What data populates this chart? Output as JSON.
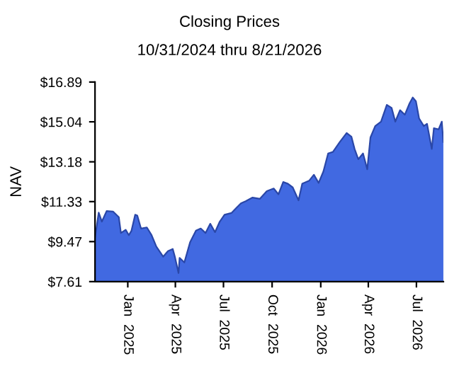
{
  "chart_data": {
    "type": "area",
    "title": "Closing Prices",
    "subtitle": "10/31/2024 thru 8/21/2026",
    "ylabel": "NAV",
    "x": [
      "2024-10-31",
      "2024-11-07",
      "2024-11-13",
      "2024-11-22",
      "2024-12-04",
      "2024-12-15",
      "2024-12-19",
      "2024-12-28",
      "2025-01-03",
      "2025-01-08",
      "2025-01-15",
      "2025-01-19",
      "2025-01-26",
      "2025-02-06",
      "2025-02-15",
      "2025-02-24",
      "2025-03-09",
      "2025-03-18",
      "2025-03-27",
      "2025-03-31",
      "2025-04-07",
      "2025-04-09",
      "2025-04-18",
      "2025-04-29",
      "2025-05-10",
      "2025-05-19",
      "2025-05-28",
      "2025-06-06",
      "2025-06-15",
      "2025-06-24",
      "2025-07-03",
      "2025-07-16",
      "2025-07-25",
      "2025-08-03",
      "2025-08-12",
      "2025-08-25",
      "2025-09-08",
      "2025-09-21",
      "2025-10-04",
      "2025-10-13",
      "2025-10-22",
      "2025-10-31",
      "2025-11-09",
      "2025-11-20",
      "2025-11-27",
      "2025-12-10",
      "2025-12-19",
      "2025-12-28",
      "2026-01-06",
      "2026-01-15",
      "2026-01-24",
      "2026-02-06",
      "2026-02-19",
      "2026-02-28",
      "2026-03-06",
      "2026-03-13",
      "2026-03-22",
      "2026-03-30",
      "2026-04-05",
      "2026-04-14",
      "2026-04-25",
      "2026-05-06",
      "2026-05-15",
      "2026-05-22",
      "2026-05-31",
      "2026-06-09",
      "2026-06-18",
      "2026-06-24",
      "2026-06-30",
      "2026-07-06",
      "2026-07-15",
      "2026-07-21",
      "2026-07-30",
      "2026-08-03",
      "2026-08-12",
      "2026-08-18",
      "2026-08-21"
    ],
    "series": [
      {
        "color": "#4169e1",
        "values": [
          9.66,
          10.82,
          10.4,
          10.89,
          10.87,
          10.61,
          9.87,
          10.02,
          9.77,
          9.98,
          10.72,
          10.68,
          10.08,
          10.13,
          9.77,
          9.24,
          8.77,
          9.03,
          9.13,
          8.77,
          8.01,
          8.71,
          8.5,
          9.45,
          9.98,
          10.08,
          9.87,
          10.3,
          9.91,
          10.4,
          10.72,
          10.8,
          11.03,
          11.25,
          11.35,
          11.52,
          11.46,
          11.82,
          11.94,
          11.67,
          12.24,
          12.16,
          11.99,
          11.39,
          12.16,
          12.3,
          12.58,
          12.2,
          12.73,
          13.57,
          13.64,
          14.1,
          14.52,
          14.35,
          13.78,
          13.3,
          13.57,
          12.83,
          14.31,
          14.84,
          15.05,
          15.83,
          15.69,
          15.05,
          15.58,
          15.37,
          15.9,
          16.17,
          16.0,
          15.2,
          14.84,
          14.95,
          13.78,
          14.74,
          14.69,
          15.05,
          14.1
        ]
      }
    ],
    "xlim": [
      "2024-10-31",
      "2026-08-21"
    ],
    "xticks": [
      {
        "value": "2025-01-01",
        "label": "Jan  2025"
      },
      {
        "value": "2025-04-01",
        "label": "Apr  2025"
      },
      {
        "value": "2025-07-01",
        "label": "Jul  2025"
      },
      {
        "value": "2025-10-01",
        "label": "Oct  2025"
      },
      {
        "value": "2026-01-01",
        "label": "Jan  2026"
      },
      {
        "value": "2026-04-01",
        "label": "Apr  2026"
      },
      {
        "value": "2026-07-01",
        "label": "Jul  2026"
      }
    ],
    "ylim": [
      7.61,
      16.89
    ],
    "yticks": [
      {
        "value": 7.61,
        "label": "$7.61"
      },
      {
        "value": 9.47,
        "label": "$9.47"
      },
      {
        "value": 11.33,
        "label": "$11.33"
      },
      {
        "value": 13.18,
        "label": "$13.18"
      },
      {
        "value": 15.04,
        "label": "$15.04"
      },
      {
        "value": 16.89,
        "label": "$16.89"
      }
    ],
    "grid": false,
    "legend": false
  }
}
